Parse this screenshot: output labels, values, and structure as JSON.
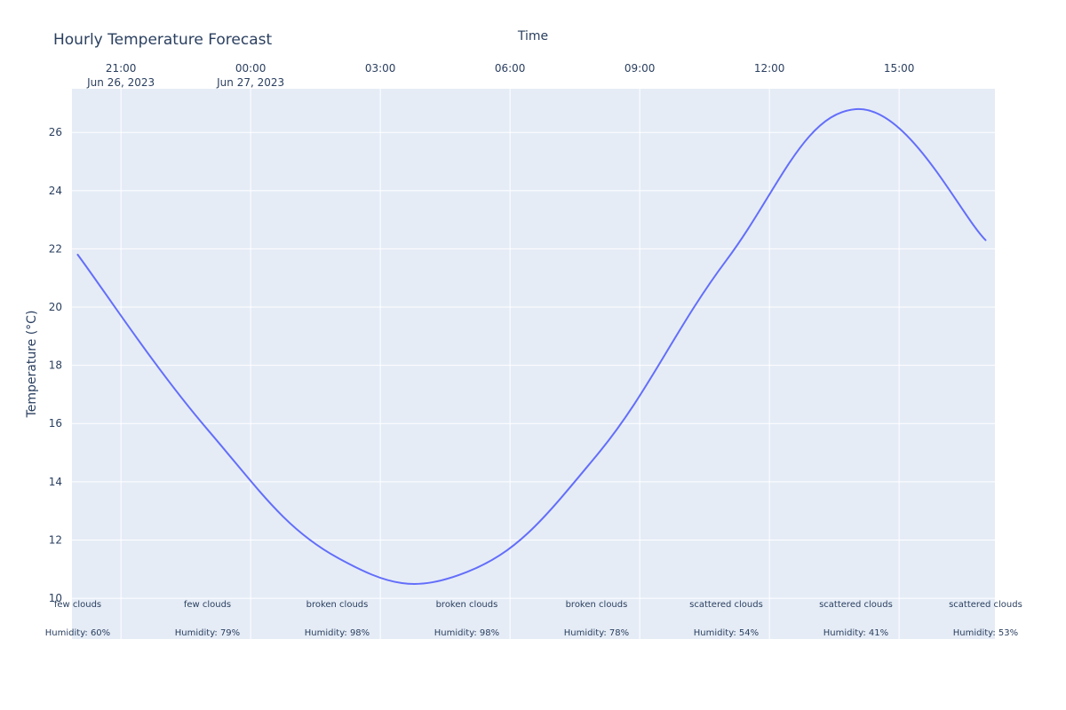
{
  "chart_data": {
    "type": "line",
    "title": "Hourly Temperature Forecast",
    "xlabel": "Time",
    "ylabel": "Temperature (°C)",
    "x_axis_position": "top",
    "grid": true,
    "plot_bgcolor": "#e5ecf6",
    "line_color": "#636efa",
    "xlim": [
      "2023-06-26 19:52",
      "2023-06-27 17:13"
    ],
    "ylim": [
      8.6,
      27.5
    ],
    "x_ticks": [
      {
        "time": "2023-06-26 21:00",
        "label": "21:00",
        "sublabel": "Jun 26, 2023"
      },
      {
        "time": "2023-06-27 00:00",
        "label": "00:00",
        "sublabel": "Jun 27, 2023"
      },
      {
        "time": "2023-06-27 03:00",
        "label": "03:00",
        "sublabel": ""
      },
      {
        "time": "2023-06-27 06:00",
        "label": "06:00",
        "sublabel": ""
      },
      {
        "time": "2023-06-27 09:00",
        "label": "09:00",
        "sublabel": ""
      },
      {
        "time": "2023-06-27 12:00",
        "label": "12:00",
        "sublabel": ""
      },
      {
        "time": "2023-06-27 15:00",
        "label": "15:00",
        "sublabel": ""
      }
    ],
    "y_ticks": [
      10,
      12,
      14,
      16,
      18,
      20,
      22,
      24,
      26
    ],
    "series": [
      {
        "x": [
          "2023-06-26 20:00",
          "2023-06-26 23:00",
          "2023-06-27 02:00",
          "2023-06-27 05:00",
          "2023-06-27 08:00",
          "2023-06-27 11:00",
          "2023-06-27 14:00",
          "2023-06-27 17:00"
        ],
        "y": [
          21.8,
          15.8,
          11.4,
          10.9,
          14.9,
          21.6,
          26.8,
          22.3
        ]
      }
    ],
    "annotations": [
      {
        "time": "2023-06-26 20:00",
        "weather": "few clouds",
        "humidity": "Humidity: 60%"
      },
      {
        "time": "2023-06-26 23:00",
        "weather": "few clouds",
        "humidity": "Humidity: 79%"
      },
      {
        "time": "2023-06-27 02:00",
        "weather": "broken clouds",
        "humidity": "Humidity: 98%"
      },
      {
        "time": "2023-06-27 05:00",
        "weather": "broken clouds",
        "humidity": "Humidity: 98%"
      },
      {
        "time": "2023-06-27 08:00",
        "weather": "broken clouds",
        "humidity": "Humidity: 78%"
      },
      {
        "time": "2023-06-27 11:00",
        "weather": "scattered clouds",
        "humidity": "Humidity: 54%"
      },
      {
        "time": "2023-06-27 14:00",
        "weather": "scattered clouds",
        "humidity": "Humidity: 41%"
      },
      {
        "time": "2023-06-27 17:00",
        "weather": "scattered clouds",
        "humidity": "Humidity: 53%"
      }
    ]
  }
}
